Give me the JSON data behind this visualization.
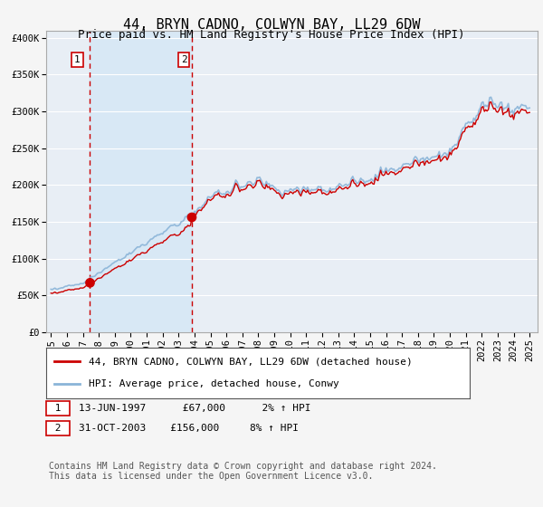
{
  "title": "44, BRYN CADNO, COLWYN BAY, LL29 6DW",
  "subtitle": "Price paid vs. HM Land Registry's House Price Index (HPI)",
  "legend_line1": "44, BRYN CADNO, COLWYN BAY, LL29 6DW (detached house)",
  "legend_line2": "HPI: Average price, detached house, Conwy",
  "sale1_label": "1",
  "sale1_date": "13-JUN-1997",
  "sale1_price": "£67,000",
  "sale1_hpi": "2% ↑ HPI",
  "sale1_year": 1997.45,
  "sale1_value": 67000,
  "sale2_label": "2",
  "sale2_date": "31-OCT-2003",
  "sale2_price": "£156,000",
  "sale2_hpi": "8% ↑ HPI",
  "sale2_year": 2003.83,
  "sale2_value": 156000,
  "hpi_color": "#8ab4d8",
  "price_color": "#cc0000",
  "dot_color": "#cc0000",
  "vline_color": "#cc0000",
  "shade_color": "#d8e8f5",
  "plot_bg_color": "#e8eef5",
  "fig_bg_color": "#f5f5f5",
  "grid_color": "#ffffff",
  "ylim_min": 0,
  "ylim_max": 410000,
  "xlim_min": 1994.7,
  "xlim_max": 2025.5,
  "yticks": [
    0,
    50000,
    100000,
    150000,
    200000,
    250000,
    300000,
    350000,
    400000
  ],
  "ytick_labels": [
    "£0",
    "£50K",
    "£100K",
    "£150K",
    "£200K",
    "£250K",
    "£300K",
    "£350K",
    "£400K"
  ],
  "xtick_years": [
    1995,
    1996,
    1997,
    1998,
    1999,
    2000,
    2001,
    2002,
    2003,
    2004,
    2005,
    2006,
    2007,
    2008,
    2009,
    2010,
    2011,
    2012,
    2013,
    2014,
    2015,
    2016,
    2017,
    2018,
    2019,
    2020,
    2021,
    2022,
    2023,
    2024,
    2025
  ],
  "footnote": "Contains HM Land Registry data © Crown copyright and database right 2024.\nThis data is licensed under the Open Government Licence v3.0.",
  "title_fontsize": 11,
  "tick_fontsize": 7.5,
  "legend_fontsize": 8,
  "footnote_fontsize": 7
}
